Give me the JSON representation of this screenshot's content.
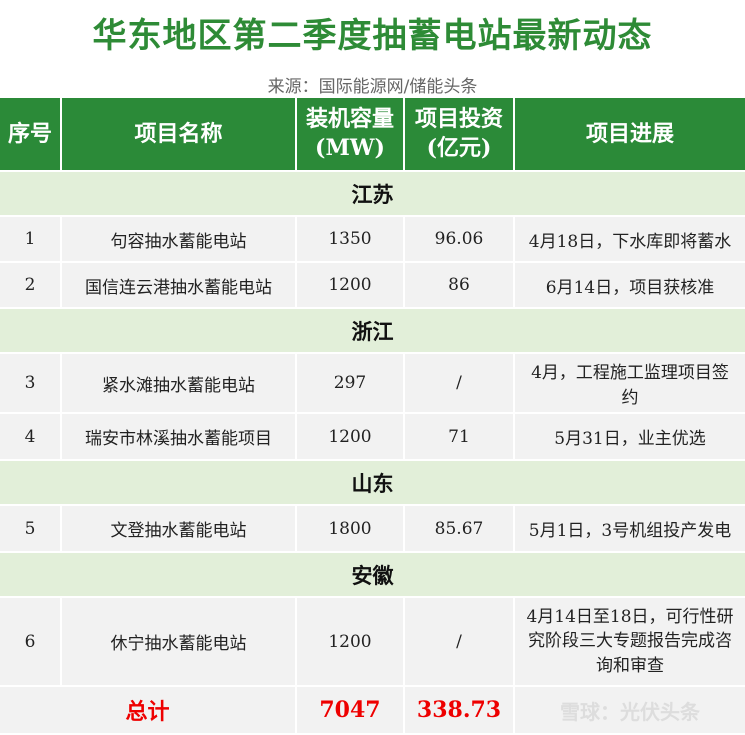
{
  "title": "华东地区第二季度抽蓄电站最新动态",
  "source": "来源：国际能源网/储能头条",
  "header": {
    "no": "序号",
    "name": "项目名称",
    "capacity": "装机容量",
    "capacity_unit": "(MW)",
    "investment": "项目投资",
    "investment_unit": "(亿元)",
    "progress": "项目进展"
  },
  "groups": [
    {
      "region": "江苏",
      "rows": [
        {
          "no": "1",
          "name": "句容抽水蓄能电站",
          "capacity": "1350",
          "investment": "96.06",
          "progress": "4月18日，下水库即将蓄水"
        },
        {
          "no": "2",
          "name": "国信连云港抽水蓄能电站",
          "capacity": "1200",
          "investment": "86",
          "progress": "6月14日，项目获核准"
        }
      ]
    },
    {
      "region": "浙江",
      "rows": [
        {
          "no": "3",
          "name": "紧水滩抽水蓄能电站",
          "capacity": "297",
          "investment": "/",
          "progress": "4月，工程施工监理项目签约"
        },
        {
          "no": "4",
          "name": "瑞安市林溪抽水蓄能项目",
          "capacity": "1200",
          "investment": "71",
          "progress": "5月31日，业主优选"
        }
      ]
    },
    {
      "region": "山东",
      "rows": [
        {
          "no": "5",
          "name": "文登抽水蓄能电站",
          "capacity": "1800",
          "investment": "85.67",
          "progress": "5月1日，3号机组投产发电"
        }
      ]
    },
    {
      "region": "安徽",
      "rows": [
        {
          "no": "6",
          "name": "休宁抽水蓄能电站",
          "capacity": "1200",
          "investment": "/",
          "progress": "4月14日至18日，可行性研究阶段三大专题报告完成咨询和审查"
        }
      ]
    }
  ],
  "total": {
    "label": "总计",
    "capacity": "7047",
    "investment": "338.73"
  },
  "watermark": "雪球：光伏头条"
}
